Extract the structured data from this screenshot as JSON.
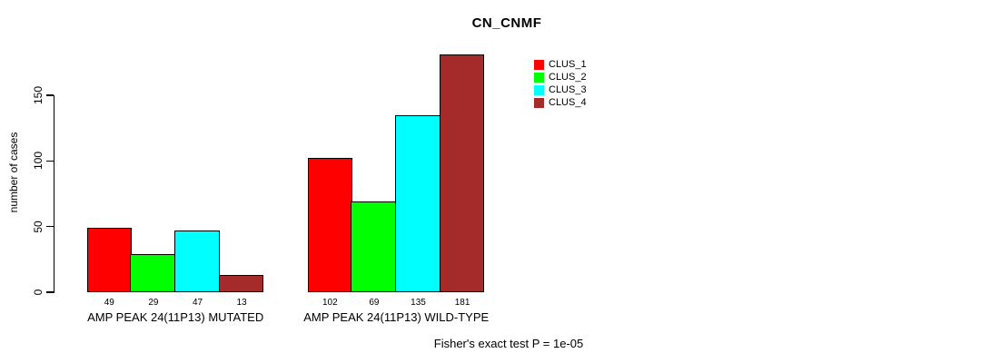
{
  "chart_data": {
    "type": "bar",
    "title": "CN_CNMF",
    "ylabel": "number of cases",
    "xlabel": "",
    "yticks": [
      0,
      50,
      100,
      150
    ],
    "ylim": [
      0,
      185
    ],
    "grid": false,
    "legend_position": "top-right",
    "bar_value_labels": true,
    "categories": [
      "AMP PEAK 24(11P13) MUTATED",
      "AMP PEAK 24(11P13) WILD-TYPE"
    ],
    "series": [
      {
        "name": "CLUS_1",
        "color": "#FF0000",
        "values": [
          49,
          102
        ]
      },
      {
        "name": "CLUS_2",
        "color": "#00FF00",
        "values": [
          29,
          69
        ]
      },
      {
        "name": "CLUS_3",
        "color": "#00FFFF",
        "values": [
          47,
          135
        ]
      },
      {
        "name": "CLUS_4",
        "color": "#A52A2A",
        "values": [
          13,
          181
        ]
      }
    ],
    "footnote": "Fisher's exact test P = 1e-05"
  },
  "colors": {
    "background": "#FFFFFF",
    "axis": "#000000",
    "text": "#000000"
  }
}
